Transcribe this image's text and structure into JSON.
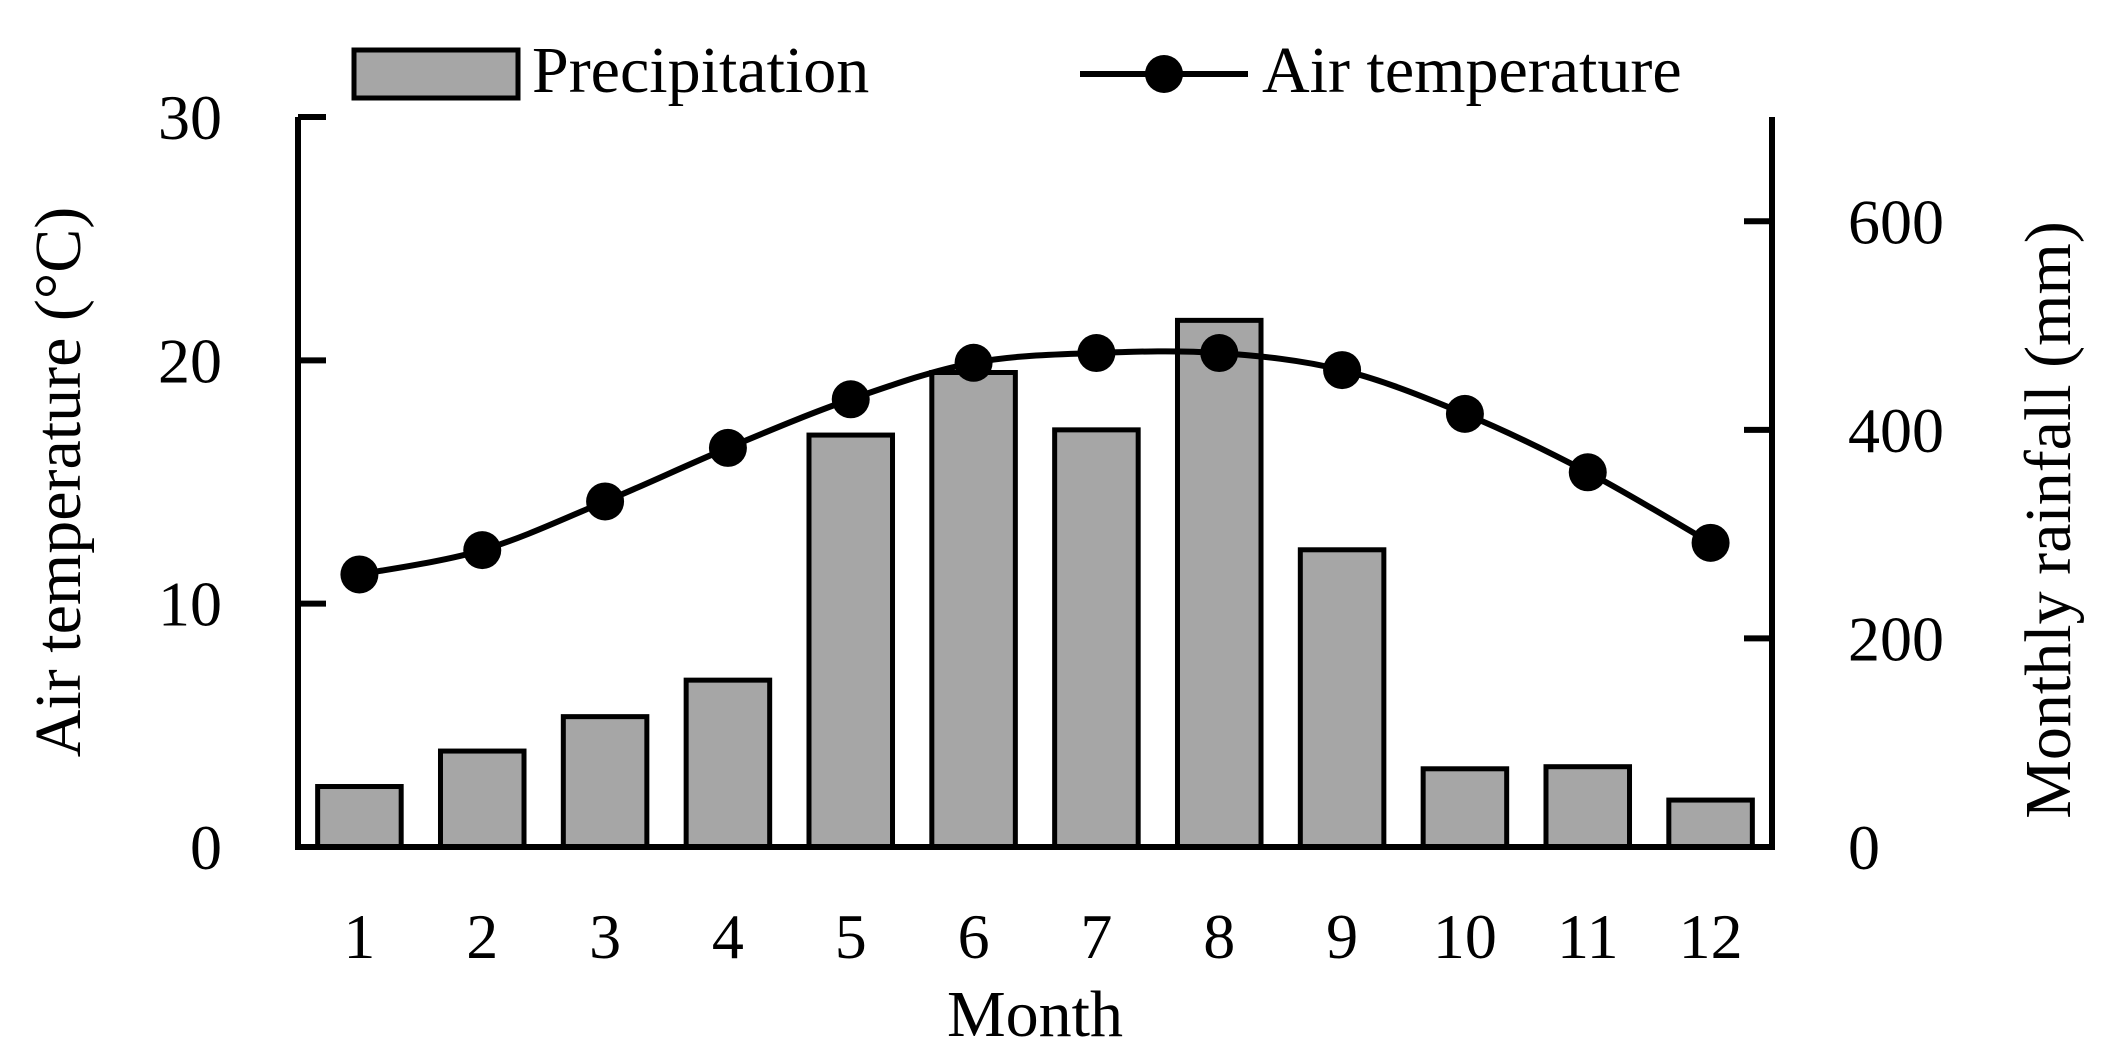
{
  "chart_data": {
    "type": "bar",
    "title": "",
    "categories": [
      "1",
      "2",
      "3",
      "4",
      "5",
      "6",
      "7",
      "8",
      "9",
      "10",
      "11",
      "12"
    ],
    "series": [
      {
        "name": "Precipitation",
        "type": "bar",
        "axis": "right",
        "values": [
          58,
          92,
          125,
          160,
          395,
          455,
          400,
          505,
          285,
          75,
          77,
          45
        ]
      },
      {
        "name": "Air temperature",
        "type": "line",
        "axis": "left",
        "values": [
          11.2,
          12.2,
          14.2,
          16.4,
          18.4,
          19.9,
          20.3,
          20.3,
          19.6,
          17.8,
          15.4,
          12.5
        ]
      }
    ],
    "xlabel": "Month",
    "ylabel_left": "Air temperature (°C)",
    "ylabel_right": "Monthly rainfall (mm)",
    "ylim_left": [
      0,
      30
    ],
    "yticks_left": [
      0,
      10,
      20,
      30
    ],
    "ylim_right": [
      0,
      700
    ],
    "yticks_right": [
      0,
      200,
      400,
      600
    ],
    "legend_position": "top",
    "grid": false,
    "colors": {
      "bar_fill": "#a6a6a6",
      "stroke": "#000000",
      "marker": "#000000"
    }
  }
}
